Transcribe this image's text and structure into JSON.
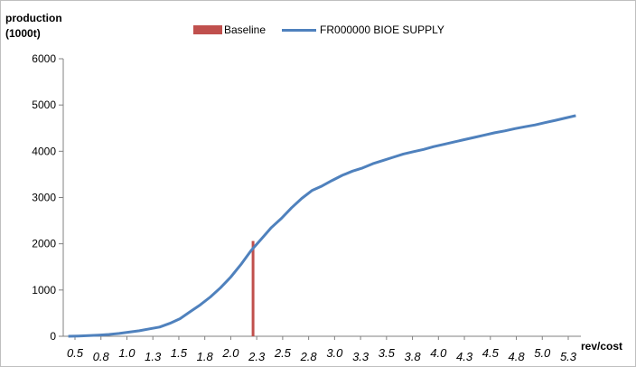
{
  "chart_data": {
    "type": "line",
    "ylabel_line1": "production",
    "ylabel_line2": "(1000t)",
    "xlabel": "rev/cost",
    "ylim": [
      0,
      6000
    ],
    "yticks": [
      0,
      1000,
      2000,
      3000,
      4000,
      5000,
      6000
    ],
    "xlim": [
      0.35,
      5.45
    ],
    "xtick_labels": [
      "0.5",
      "0.8",
      "1.0",
      "1.3",
      "1.5",
      "1.8",
      "2.0",
      "2.3",
      "2.5",
      "2.8",
      "3.0",
      "3.3",
      "3.5",
      "3.8",
      "4.0",
      "4.3",
      "4.5",
      "4.8",
      "5.0",
      "5.3"
    ],
    "legend_position": "top",
    "grid": false,
    "series": [
      {
        "name": "FR000000 BIOE SUPPLY",
        "type": "line",
        "color": "#4f81bd",
        "x": [
          0.4,
          0.5,
          0.6,
          0.7,
          0.8,
          0.9,
          1.0,
          1.1,
          1.2,
          1.3,
          1.4,
          1.5,
          1.6,
          1.7,
          1.8,
          1.9,
          2.0,
          2.1,
          2.2,
          2.3,
          2.4,
          2.5,
          2.6,
          2.7,
          2.8,
          2.9,
          3.0,
          3.1,
          3.2,
          3.3,
          3.4,
          3.5,
          3.6,
          3.7,
          3.8,
          3.9,
          4.0,
          4.1,
          4.2,
          4.3,
          4.4,
          4.5,
          4.6,
          4.7,
          4.8,
          4.9,
          5.0,
          5.1,
          5.2,
          5.3,
          5.4
        ],
        "y": [
          0,
          5,
          15,
          25,
          40,
          60,
          90,
          120,
          160,
          200,
          280,
          380,
          530,
          680,
          850,
          1050,
          1280,
          1550,
          1850,
          2100,
          2350,
          2550,
          2780,
          2980,
          3150,
          3250,
          3370,
          3480,
          3570,
          3640,
          3730,
          3800,
          3870,
          3940,
          3990,
          4040,
          4100,
          4150,
          4200,
          4250,
          4300,
          4350,
          4400,
          4440,
          4490,
          4530,
          4570,
          4620,
          4670,
          4720,
          4770
        ]
      },
      {
        "name": "Baseline",
        "type": "bar",
        "color": "#c0504d",
        "x": [
          2.22
        ],
        "y": [
          2060
        ]
      }
    ]
  }
}
